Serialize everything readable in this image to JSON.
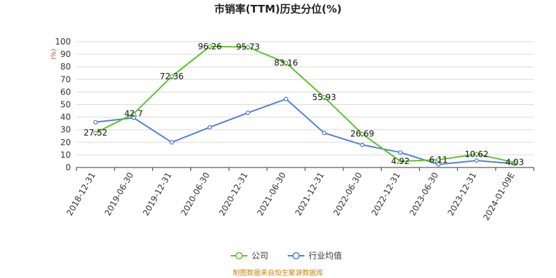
{
  "chart_data": {
    "type": "line",
    "title": "市销率(TTM)历史分位(%)",
    "ylabel": "(%)",
    "ylim": [
      0,
      100
    ],
    "yticks": [
      0,
      10,
      20,
      30,
      40,
      50,
      60,
      70,
      80,
      90,
      100
    ],
    "categories": [
      "2018-12-31",
      "2019-06-30",
      "2019-12-31",
      "2020-06-30",
      "2020-12-31",
      "2021-06-30",
      "2021-12-31",
      "2022-06-30",
      "2022-12-31",
      "2023-06-30",
      "2023-12-31",
      "2024-01-09E"
    ],
    "series": [
      {
        "name": "公司",
        "color": "#5cc22c",
        "values": [
          27.52,
          42.7,
          72.36,
          96.26,
          95.73,
          83.16,
          55.93,
          26.69,
          4.92,
          6.11,
          10.62,
          4.03
        ],
        "labels": [
          "27.52",
          "42.7",
          "72.36",
          "96.26",
          "95.73",
          "83.16",
          "55.93",
          "26.69",
          "4.92",
          "6.11",
          "10.62",
          "4.03"
        ]
      },
      {
        "name": "行业均值",
        "color": "#4f7fd9",
        "values": [
          36,
          39.5,
          20,
          32,
          43.5,
          54.5,
          27.5,
          18,
          12,
          2.5,
          5.5,
          3
        ]
      }
    ],
    "grid": true,
    "legend": "bottom-center"
  },
  "source_note": "制图数据来自恒生聚源数据库"
}
